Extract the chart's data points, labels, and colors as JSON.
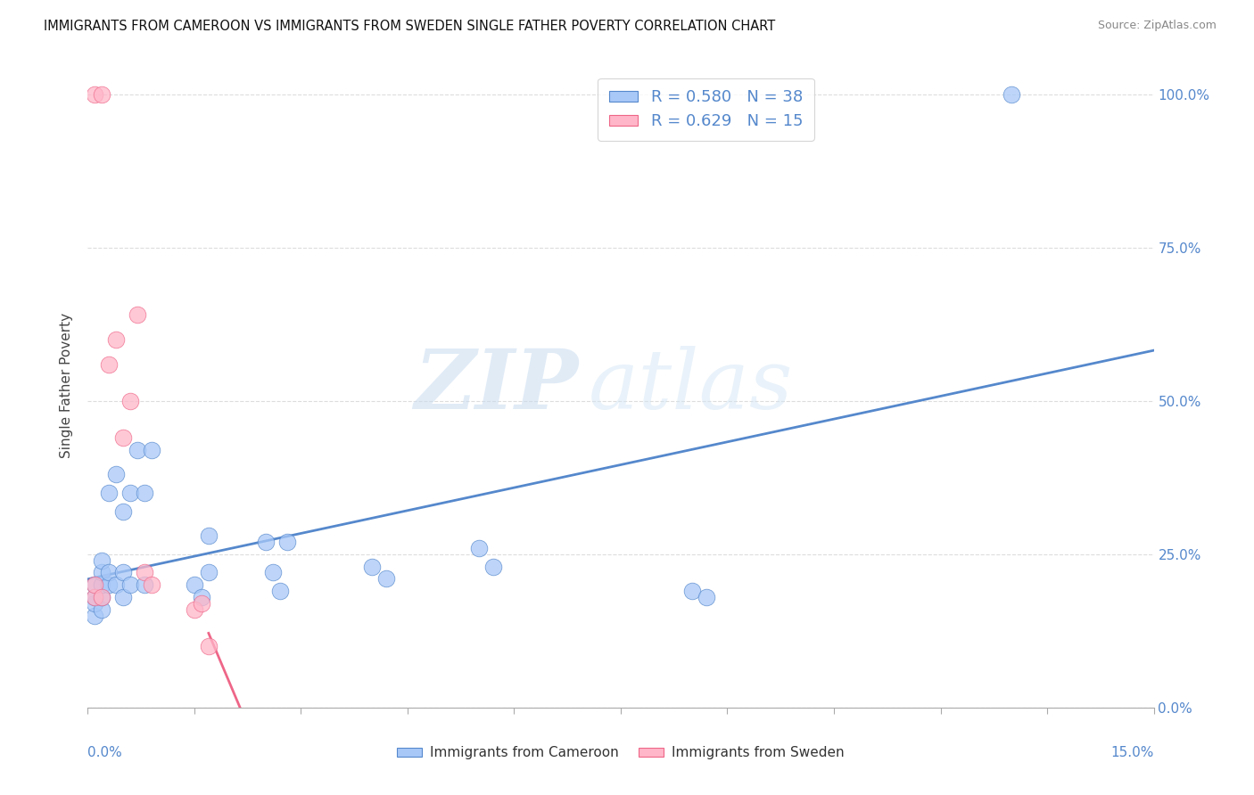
{
  "title": "IMMIGRANTS FROM CAMEROON VS IMMIGRANTS FROM SWEDEN SINGLE FATHER POVERTY CORRELATION CHART",
  "source": "Source: ZipAtlas.com",
  "ylabel": "Single Father Poverty",
  "legend_label1": "R = 0.580   N = 38",
  "legend_label2": "R = 0.629   N = 15",
  "legend_bottom1": "Immigrants from Cameroon",
  "legend_bottom2": "Immigrants from Sweden",
  "color_cameroon": "#a8c8f8",
  "color_sweden": "#ffb6c8",
  "line_color_cameroon": "#5588cc",
  "line_color_sweden": "#ee6688",
  "watermark_zip": "ZIP",
  "watermark_atlas": "atlas",
  "background": "#ffffff",
  "grid_color": "#dddddd",
  "cameroon_x": [
    0.001,
    0.001,
    0.001,
    0.001,
    0.002,
    0.002,
    0.002,
    0.002,
    0.002,
    0.003,
    0.003,
    0.003,
    0.004,
    0.004,
    0.005,
    0.005,
    0.005,
    0.006,
    0.006,
    0.007,
    0.008,
    0.008,
    0.009,
    0.015,
    0.016,
    0.017,
    0.017,
    0.025,
    0.026,
    0.027,
    0.028,
    0.04,
    0.042,
    0.055,
    0.057,
    0.085,
    0.087,
    0.13
  ],
  "cameroon_y": [
    0.15,
    0.17,
    0.18,
    0.2,
    0.16,
    0.18,
    0.2,
    0.22,
    0.24,
    0.2,
    0.22,
    0.35,
    0.2,
    0.38,
    0.18,
    0.22,
    0.32,
    0.2,
    0.35,
    0.42,
    0.2,
    0.35,
    0.42,
    0.2,
    0.18,
    0.22,
    0.28,
    0.27,
    0.22,
    0.19,
    0.27,
    0.23,
    0.21,
    0.26,
    0.23,
    0.19,
    0.18,
    1.0
  ],
  "sweden_x": [
    0.001,
    0.001,
    0.001,
    0.002,
    0.002,
    0.003,
    0.004,
    0.005,
    0.006,
    0.007,
    0.008,
    0.009,
    0.015,
    0.016,
    0.017
  ],
  "sweden_y": [
    0.18,
    0.2,
    1.0,
    0.18,
    1.0,
    0.56,
    0.6,
    0.44,
    0.5,
    0.64,
    0.22,
    0.2,
    0.16,
    0.17,
    0.1
  ],
  "xlim": [
    0.0,
    0.15
  ],
  "ylim": [
    0.0,
    1.05
  ],
  "y_ticks": [
    0.0,
    0.25,
    0.5,
    0.75,
    1.0
  ],
  "y_tick_labels": [
    "0.0%",
    "25.0%",
    "50.0%",
    "75.0%",
    "100.0%"
  ]
}
